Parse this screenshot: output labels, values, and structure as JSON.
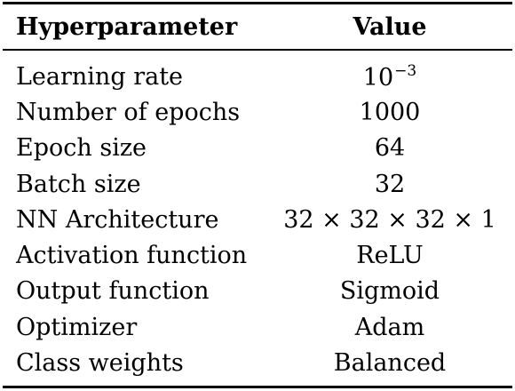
{
  "header": {
    "col_name": "Hyperparameter",
    "col_value": "Value"
  },
  "rows": [
    {
      "name": "Learning rate",
      "value_base": "10",
      "value_sup": "−3"
    },
    {
      "name": "Number of epochs",
      "value": "1000"
    },
    {
      "name": "Epoch size",
      "value": "64"
    },
    {
      "name": "Batch size",
      "value": "32"
    },
    {
      "name": "NN Architecture",
      "value": "32 × 32 × 32 × 1"
    },
    {
      "name": "Activation function",
      "value": "ReLU"
    },
    {
      "name": "Output function",
      "value": "Sigmoid"
    },
    {
      "name": "Optimizer",
      "value": "Adam"
    },
    {
      "name": "Class weights",
      "value": "Balanced"
    }
  ]
}
